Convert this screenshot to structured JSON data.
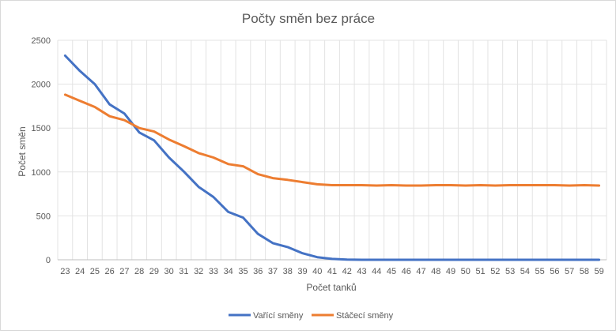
{
  "chart_data": {
    "type": "line",
    "title": "Počty směn bez práce",
    "xlabel": "Počet tanků",
    "ylabel": "Počet směn",
    "ylim": [
      0,
      2500
    ],
    "yticks": [
      0,
      500,
      1000,
      1500,
      2000,
      2500
    ],
    "grid": "vertical and horizontal",
    "legend": "bottom",
    "categories": [
      "23",
      "24",
      "25",
      "26",
      "27",
      "28",
      "29",
      "30",
      "31",
      "32",
      "33",
      "34",
      "35",
      "36",
      "37",
      "38",
      "39",
      "40",
      "41",
      "42",
      "43",
      "44",
      "45",
      "46",
      "47",
      "48",
      "49",
      "50",
      "51",
      "52",
      "53",
      "54",
      "55",
      "56",
      "57",
      "58",
      "59"
    ],
    "series": [
      {
        "name": "Vařící směny",
        "color": "#4472c4",
        "values": [
          2325,
          2150,
          2000,
          1770,
          1665,
          1450,
          1360,
          1165,
          1005,
          830,
          715,
          545,
          480,
          295,
          190,
          145,
          75,
          30,
          10,
          2,
          0,
          0,
          0,
          0,
          0,
          0,
          0,
          0,
          0,
          0,
          0,
          0,
          0,
          0,
          0,
          0,
          0
        ]
      },
      {
        "name": "Stáčecí směny",
        "color": "#ed7d31",
        "values": [
          1880,
          1810,
          1740,
          1635,
          1590,
          1500,
          1460,
          1370,
          1295,
          1215,
          1165,
          1090,
          1065,
          975,
          930,
          910,
          885,
          860,
          850,
          850,
          850,
          845,
          850,
          845,
          845,
          850,
          850,
          845,
          850,
          845,
          850,
          850,
          850,
          850,
          845,
          850,
          845
        ]
      }
    ]
  }
}
